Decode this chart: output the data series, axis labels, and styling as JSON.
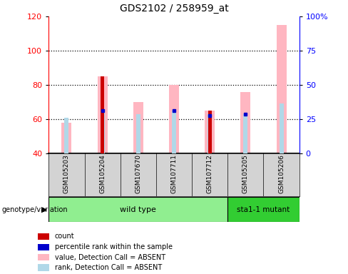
{
  "title": "GDS2102 / 258959_at",
  "samples": [
    "GSM105203",
    "GSM105204",
    "GSM107670",
    "GSM107711",
    "GSM107712",
    "GSM105205",
    "GSM105206"
  ],
  "pink_value_top": [
    58,
    85,
    70,
    80,
    65,
    76,
    115
  ],
  "blue_rank_top": [
    61,
    65,
    63,
    65,
    63,
    63,
    69
  ],
  "red_count_top": [
    null,
    85,
    null,
    null,
    65,
    null,
    null
  ],
  "blue_dot_y": [
    null,
    65,
    null,
    65,
    62,
    63,
    null
  ],
  "bar_bottom": 40,
  "ylim": [
    40,
    120
  ],
  "yticks_left": [
    40,
    60,
    80,
    100,
    120
  ],
  "yticks_right": [
    0,
    25,
    50,
    75,
    100
  ],
  "ytick_labels_right": [
    "0",
    "25",
    "50",
    "75",
    "100%"
  ],
  "grid_lines": [
    60,
    80,
    100
  ],
  "bg_color": "#d3d3d3",
  "plot_bg": "#ffffff",
  "wt_color": "#90ee90",
  "mut_color": "#32cd32",
  "color_pink_value": "#ffb6c1",
  "color_blue_rank": "#b0d8e8",
  "color_red_count": "#cc0000",
  "color_blue_dot": "#0000cc",
  "wt_indices": [
    0,
    1,
    2,
    3,
    4
  ],
  "mut_indices": [
    5,
    6
  ],
  "wt_label": "wild type",
  "mut_label": "sta1-1 mutant",
  "group_label": "genotype/variation",
  "legend_items": [
    {
      "label": "count",
      "color": "#cc0000"
    },
    {
      "label": "percentile rank within the sample",
      "color": "#0000cc"
    },
    {
      "label": "value, Detection Call = ABSENT",
      "color": "#ffb6c1"
    },
    {
      "label": "rank, Detection Call = ABSENT",
      "color": "#b0d8e8"
    }
  ]
}
